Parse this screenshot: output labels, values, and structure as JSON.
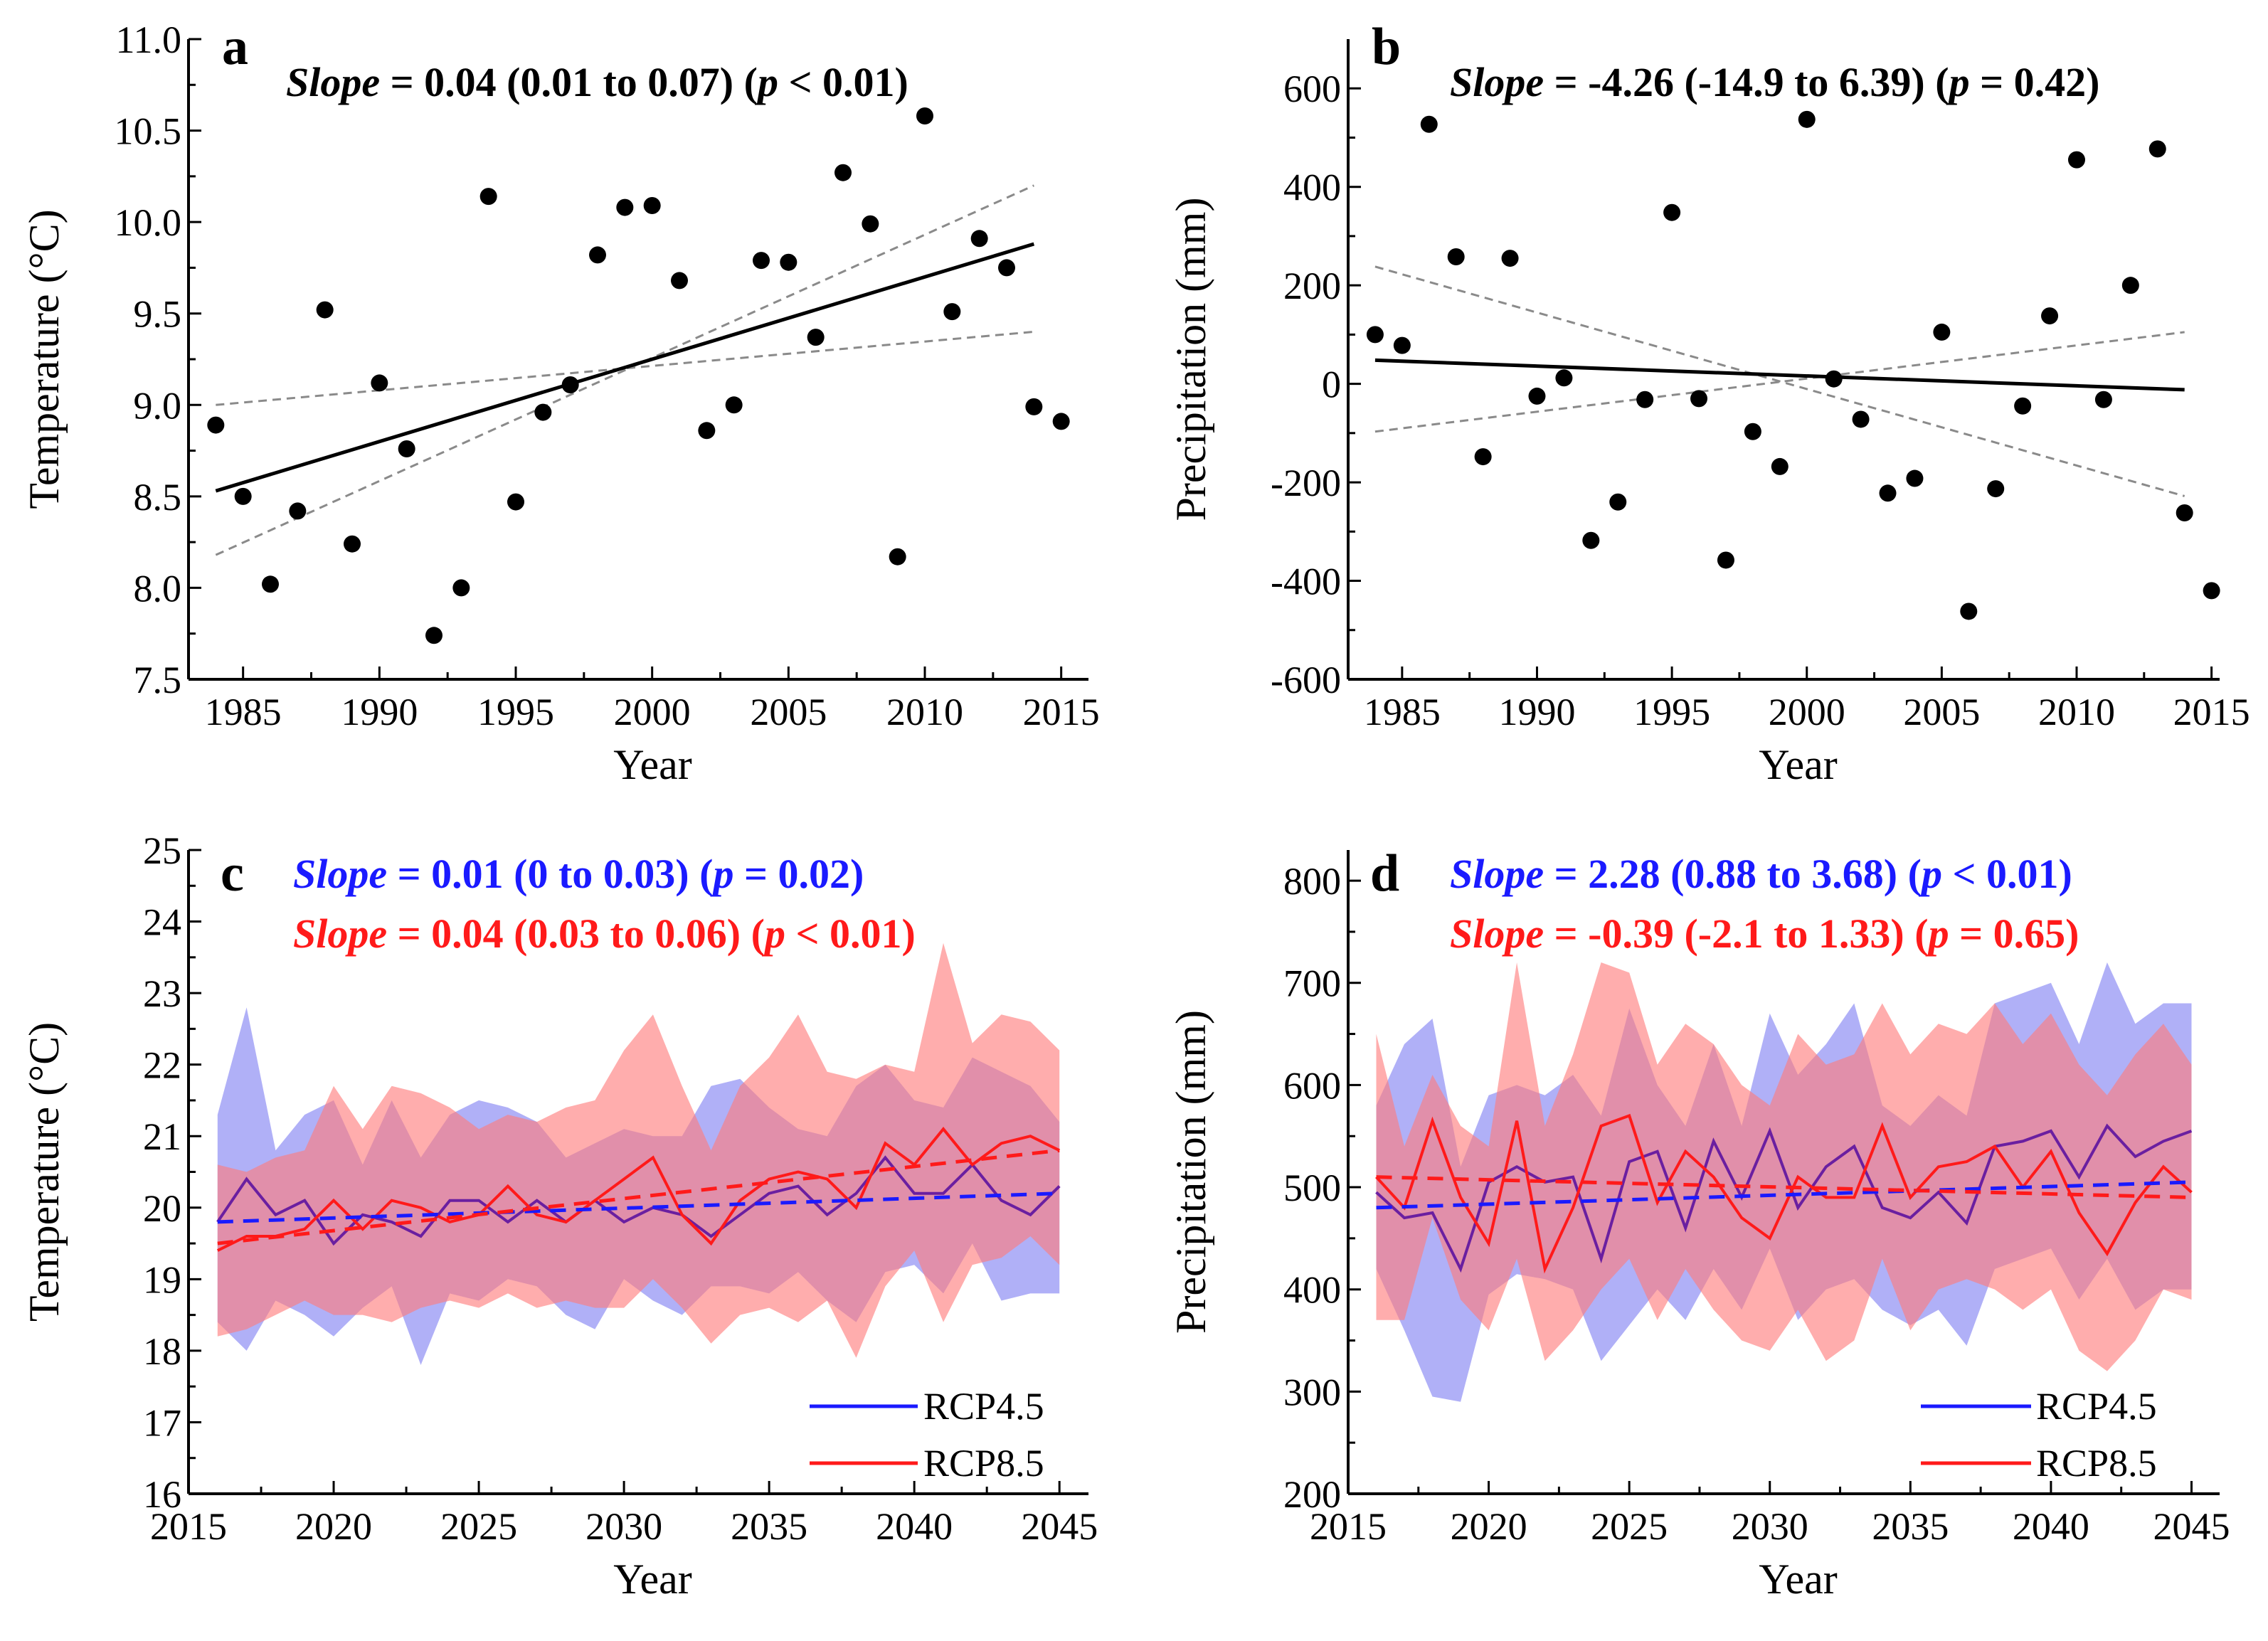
{
  "chart_data": [
    {
      "panel": "a",
      "type": "scatter",
      "slope_text": {
        "label": "Slope",
        "rest": " = 0.04 (0.01 to 0.07) (",
        "p": "p",
        "tail": " < 0.01)"
      },
      "xlabel": "Year",
      "ylabel": "Temperature (°C)",
      "xlim": [
        1983,
        2016
      ],
      "ylim": [
        7.5,
        11.0
      ],
      "xticks": [
        1985,
        1990,
        1995,
        2000,
        2005,
        2010,
        2015
      ],
      "yticks": [
        7.5,
        8.0,
        8.5,
        9.0,
        9.5,
        10.0,
        10.5,
        11.0
      ],
      "ytick_labels": [
        "7.5",
        "8.0",
        "8.5",
        "9.0",
        "9.5",
        "10.0",
        "10.5",
        "11.0"
      ],
      "x": [
        1984,
        1985,
        1986,
        1987,
        1988,
        1989,
        1990,
        1991,
        1992,
        1993,
        1994,
        1995,
        1996,
        1997,
        1998,
        1999,
        2000,
        2001,
        2002,
        2003,
        2004,
        2005,
        2006,
        2007,
        2008,
        2009,
        2010,
        2011,
        2012,
        2013,
        2014,
        2015
      ],
      "y": [
        8.89,
        8.5,
        8.02,
        8.42,
        9.52,
        8.24,
        9.12,
        8.76,
        7.74,
        8.0,
        10.14,
        8.47,
        8.96,
        9.11,
        9.82,
        10.08,
        10.09,
        9.68,
        8.86,
        9.0,
        9.79,
        9.78,
        9.37,
        10.27,
        9.99,
        8.17,
        10.58,
        9.51,
        9.91,
        9.75,
        8.99,
        8.91
      ],
      "fit": {
        "x": [
          1984,
          2014
        ],
        "y": [
          8.53,
          9.88
        ]
      },
      "ci_lines": [
        {
          "x": [
            1984,
            2014
          ],
          "y": [
            9.0,
            9.4
          ]
        },
        {
          "x": [
            1984,
            2014
          ],
          "y": [
            8.18,
            10.2
          ]
        }
      ]
    },
    {
      "panel": "b",
      "type": "scatter",
      "slope_text": {
        "label": "Slope",
        "rest": " = -4.26 (-14.9 to 6.39) (",
        "p": "p",
        "tail": " = 0.42)"
      },
      "xlabel": "Year",
      "ylabel": "Precipitation (mm)",
      "xlim": [
        1983,
        2015.3
      ],
      "ylim": [
        -600,
        700
      ],
      "xticks": [
        1985,
        1990,
        1995,
        2000,
        2005,
        2010,
        2015
      ],
      "yticks": [
        -600,
        -400,
        -200,
        0,
        200,
        400,
        600
      ],
      "ytick_labels": [
        "-600",
        "-400",
        "-200",
        "0",
        "200",
        "400",
        "600"
      ],
      "x": [
        1984,
        1985,
        1986,
        1987,
        1988,
        1989,
        1990,
        1991,
        1992,
        1993,
        1994,
        1995,
        1996,
        1997,
        1998,
        1999,
        2000,
        2001,
        2002,
        2003,
        2004,
        2005,
        2006,
        2007,
        2008,
        2009,
        2010,
        2011,
        2012,
        2013,
        2014,
        2015
      ],
      "y": [
        100,
        78,
        527,
        258,
        -148,
        255,
        -25,
        12,
        -318,
        -240,
        -32,
        348,
        -30,
        -358,
        -97,
        -168,
        537,
        10,
        -72,
        -222,
        -192,
        105,
        -462,
        -213,
        -45,
        138,
        455,
        -32,
        200,
        477,
        -262,
        -420
      ],
      "fit": {
        "x": [
          1984,
          2014
        ],
        "y": [
          48,
          -12
        ]
      },
      "ci_lines": [
        {
          "x": [
            1984,
            2014
          ],
          "y": [
            238,
            -228
          ]
        },
        {
          "x": [
            1984,
            2014
          ],
          "y": [
            -97,
            105
          ]
        }
      ]
    },
    {
      "panel": "c",
      "type": "line",
      "slope_texts": [
        {
          "label": "Slope",
          "rest": " = 0.01 (0 to 0.03) (",
          "p": "p",
          "tail": " = 0.02)",
          "color": "#1a1aff"
        },
        {
          "label": "Slope",
          "rest": " = 0.04 (0.03 to 0.06) (",
          "p": "p",
          "tail": " < 0.01)",
          "color": "#ff1a1a"
        }
      ],
      "xlabel": "Year",
      "ylabel": "Temperature (°C)",
      "xlim": [
        2015,
        2046
      ],
      "ylim": [
        16,
        25
      ],
      "xticks": [
        2015,
        2020,
        2025,
        2030,
        2035,
        2040,
        2045
      ],
      "yticks": [
        16,
        17,
        18,
        19,
        20,
        21,
        22,
        23,
        24,
        25
      ],
      "ytick_labels": [
        "16",
        "17",
        "18",
        "19",
        "20",
        "21",
        "22",
        "23",
        "24",
        "25"
      ],
      "x": [
        2016,
        2017,
        2018,
        2019,
        2020,
        2021,
        2022,
        2023,
        2024,
        2025,
        2026,
        2027,
        2028,
        2029,
        2030,
        2031,
        2032,
        2033,
        2034,
        2035,
        2036,
        2037,
        2038,
        2039,
        2040,
        2041,
        2042,
        2043,
        2044,
        2045
      ],
      "series": [
        {
          "name": "RCP4.5",
          "color": "#1a1aff",
          "band_color": "#7f7ff2",
          "values": [
            19.8,
            20.4,
            19.9,
            20.1,
            19.5,
            19.9,
            19.8,
            19.6,
            20.1,
            20.1,
            19.8,
            20.1,
            19.8,
            20.1,
            19.8,
            20.0,
            19.9,
            19.6,
            19.9,
            20.2,
            20.3,
            19.9,
            20.2,
            20.7,
            20.2,
            20.2,
            20.6,
            20.1,
            19.9,
            20.3
          ],
          "upper": [
            21.3,
            22.8,
            20.8,
            21.3,
            21.5,
            20.6,
            21.5,
            20.7,
            21.3,
            21.5,
            21.4,
            21.2,
            20.7,
            20.9,
            21.1,
            21.0,
            21.0,
            21.7,
            21.8,
            21.4,
            21.1,
            21.0,
            21.7,
            22.0,
            21.5,
            21.4,
            22.1,
            21.9,
            21.7,
            21.2
          ],
          "lower": [
            18.4,
            18.0,
            18.7,
            18.5,
            18.2,
            18.6,
            18.9,
            17.8,
            18.8,
            18.7,
            19.0,
            18.9,
            18.5,
            18.3,
            19.0,
            18.7,
            18.5,
            18.9,
            18.9,
            18.8,
            19.1,
            18.7,
            18.4,
            19.1,
            19.2,
            18.8,
            19.5,
            18.7,
            18.8,
            18.8
          ],
          "trend": [
            19.8,
            20.2
          ]
        },
        {
          "name": "RCP8.5",
          "color": "#ff1a1a",
          "band_color": "#ff7a7a",
          "values": [
            19.4,
            19.6,
            19.6,
            19.7,
            20.1,
            19.7,
            20.1,
            20.0,
            19.8,
            19.9,
            20.3,
            19.9,
            19.8,
            20.1,
            20.4,
            20.7,
            19.9,
            19.5,
            20.1,
            20.4,
            20.5,
            20.4,
            20.0,
            20.9,
            20.6,
            21.1,
            20.6,
            20.9,
            21.0,
            20.8
          ],
          "upper": [
            20.6,
            20.5,
            20.7,
            20.8,
            21.7,
            21.1,
            21.7,
            21.6,
            21.4,
            21.1,
            21.3,
            21.2,
            21.4,
            21.5,
            22.2,
            22.7,
            21.7,
            20.8,
            21.7,
            22.1,
            22.7,
            21.9,
            21.8,
            22.0,
            21.9,
            23.7,
            22.3,
            22.7,
            22.6,
            22.2
          ],
          "lower": [
            18.2,
            18.3,
            18.5,
            18.7,
            18.5,
            18.5,
            18.4,
            18.6,
            18.7,
            18.6,
            18.8,
            18.6,
            18.7,
            18.6,
            18.6,
            19.0,
            18.6,
            18.1,
            18.5,
            18.6,
            18.4,
            18.7,
            17.9,
            18.9,
            19.4,
            18.4,
            19.2,
            19.3,
            19.6,
            19.2
          ],
          "trend": [
            19.5,
            20.8
          ]
        }
      ]
    },
    {
      "panel": "d",
      "type": "line",
      "slope_texts": [
        {
          "label": "Slope",
          "rest": " = 2.28 (0.88 to 3.68) (",
          "p": "p",
          "tail": " < 0.01)",
          "color": "#1a1aff"
        },
        {
          "label": "Slope",
          "rest": " = -0.39 (-2.1 to 1.33) (",
          "p": "p",
          "tail": " = 0.65)",
          "color": "#ff1a1a"
        }
      ],
      "xlabel": "Year",
      "ylabel": "Precipitation (mm)",
      "xlim": [
        2015,
        2046
      ],
      "ylim": [
        200,
        830
      ],
      "xticks": [
        2015,
        2020,
        2025,
        2030,
        2035,
        2040,
        2045
      ],
      "yticks": [
        200,
        300,
        400,
        500,
        600,
        700,
        800
      ],
      "ytick_labels": [
        "200",
        "300",
        "400",
        "500",
        "600",
        "700",
        "800"
      ],
      "x": [
        2016,
        2017,
        2018,
        2019,
        2020,
        2021,
        2022,
        2023,
        2024,
        2025,
        2026,
        2027,
        2028,
        2029,
        2030,
        2031,
        2032,
        2033,
        2034,
        2035,
        2036,
        2037,
        2038,
        2039,
        2040,
        2041,
        2042,
        2043,
        2044,
        2045
      ],
      "series": [
        {
          "name": "RCP4.5",
          "color": "#1a1aff",
          "band_color": "#7f7ff2",
          "values": [
            495,
            470,
            475,
            420,
            505,
            520,
            505,
            510,
            430,
            525,
            535,
            460,
            545,
            490,
            555,
            480,
            520,
            540,
            480,
            470,
            495,
            465,
            540,
            545,
            555,
            510,
            560,
            530,
            545,
            555
          ],
          "upper": [
            580,
            640,
            665,
            520,
            590,
            600,
            590,
            610,
            570,
            675,
            600,
            560,
            640,
            560,
            670,
            610,
            640,
            680,
            580,
            560,
            590,
            570,
            680,
            690,
            700,
            640,
            720,
            660,
            680,
            680
          ],
          "lower": [
            420,
            360,
            295,
            290,
            395,
            415,
            410,
            400,
            330,
            365,
            400,
            370,
            420,
            380,
            440,
            370,
            400,
            410,
            380,
            365,
            380,
            345,
            420,
            430,
            440,
            390,
            430,
            380,
            400,
            400
          ],
          "trend": [
            480,
            505
          ]
        },
        {
          "name": "RCP8.5",
          "color": "#ff1a1a",
          "band_color": "#ff7a7a",
          "values": [
            510,
            480,
            565,
            490,
            445,
            565,
            420,
            480,
            560,
            570,
            485,
            535,
            510,
            470,
            450,
            510,
            490,
            490,
            560,
            490,
            520,
            525,
            540,
            500,
            535,
            475,
            435,
            485,
            520,
            495
          ],
          "upper": [
            650,
            540,
            610,
            560,
            540,
            720,
            560,
            630,
            720,
            710,
            620,
            660,
            640,
            600,
            580,
            650,
            620,
            630,
            680,
            630,
            660,
            650,
            680,
            640,
            670,
            620,
            590,
            630,
            660,
            620
          ],
          "lower": [
            370,
            370,
            470,
            390,
            360,
            430,
            330,
            360,
            400,
            430,
            370,
            420,
            380,
            350,
            340,
            380,
            330,
            350,
            430,
            360,
            400,
            410,
            400,
            380,
            400,
            340,
            320,
            350,
            400,
            390
          ],
          "trend": [
            510,
            490
          ]
        }
      ],
      "legend_labels": [
        "RCP4.5",
        "RCP8.5"
      ]
    }
  ],
  "panels": {
    "a": {
      "label": "a"
    },
    "b": {
      "label": "b"
    },
    "c": {
      "label": "c",
      "legend": [
        "RCP4.5",
        "RCP8.5"
      ]
    },
    "d": {
      "label": "d",
      "legend": [
        "RCP4.5",
        "RCP8.5"
      ]
    }
  }
}
